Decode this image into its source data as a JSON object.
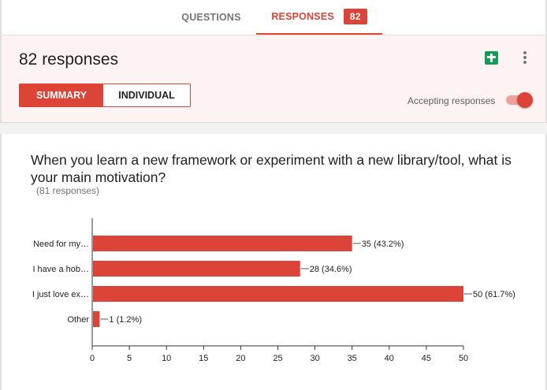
{
  "tabs": {
    "questions": "QUESTIONS",
    "responses": "RESPONSES",
    "responses_count": "82"
  },
  "header": {
    "title": "82 responses",
    "summary_label": "SUMMARY",
    "individual_label": "INDIVIDUAL",
    "accepting_label": "Accepting responses",
    "accepting_on": true
  },
  "question": {
    "title": "When you learn a new framework or experiment with a new library/tool, what is your main motivation?",
    "count_label": "(81 responses)"
  },
  "colors": {
    "accent": "#db4437",
    "sheets": "#0f9d58"
  },
  "chart_data": {
    "type": "bar",
    "orientation": "horizontal",
    "categories": [
      "Need for my…",
      "I have a hob…",
      "I just love ex…",
      "Other"
    ],
    "values": [
      35,
      28,
      50,
      1
    ],
    "data_labels": [
      "35 (43.2%)",
      "28 (34.6%)",
      "50 (61.7%)",
      "1 (1.2%)"
    ],
    "xlim": [
      0,
      50
    ],
    "xticks": [
      0,
      5,
      10,
      15,
      20,
      25,
      30,
      35,
      40,
      45,
      50
    ],
    "grid": false,
    "color": "#db4437"
  }
}
